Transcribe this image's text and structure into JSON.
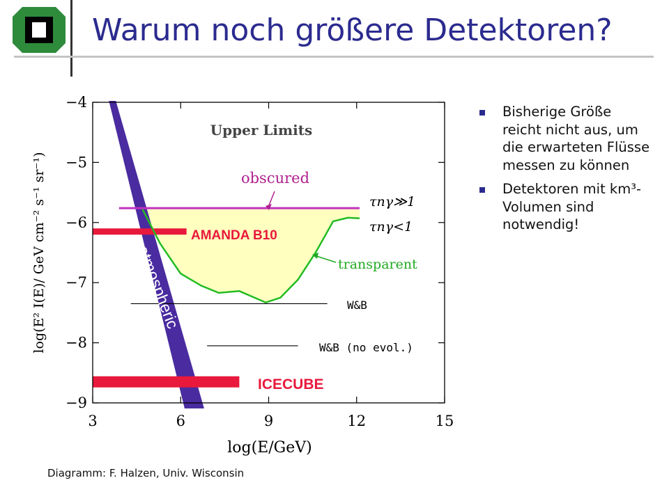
{
  "slide": {
    "title": "Warum noch größere Detektoren?",
    "bullets": [
      "Bisherige Größe reicht nicht aus, um die erwarteten Flüsse messen zu können",
      "Detektoren mit km³-Volumen sind notwendig!"
    ],
    "caption": "Diagramm: F. Halzen, Univ. Wisconsin",
    "colors": {
      "title": "#2b2b8f",
      "bullet": "#2b2b8f",
      "logo": "#2e8b3c"
    }
  },
  "chart_data": {
    "type": "line",
    "title": "Upper Limits",
    "xlabel": "log(E/GeV)",
    "ylabel": "log(E² I(E)/ GeV cm⁻² s⁻¹ sr⁻¹)",
    "xlim": [
      3,
      15
    ],
    "ylim": [
      -9,
      -4
    ],
    "x_ticks": [
      3,
      6,
      9,
      12,
      15
    ],
    "y_ticks": [
      -4,
      -5,
      -6,
      -7,
      -8,
      -9
    ],
    "x_tick_labels": [
      "3",
      "6",
      "9",
      "12",
      "15"
    ],
    "y_tick_labels": [
      "−4",
      "−5",
      "−6",
      "−7",
      "−8",
      "−9"
    ],
    "series": [
      {
        "name": "obscured",
        "color": "#c030c0",
        "x": [
          3.9,
          12.1
        ],
        "y": [
          -5.76,
          -5.76
        ],
        "annotation": "τnγ≫1"
      },
      {
        "name": "transparent",
        "color": "#22bb22",
        "x": [
          4.7,
          5.3,
          6.0,
          6.7,
          7.3,
          8.0,
          8.9,
          9.4,
          10.0,
          10.6,
          11.2,
          11.7,
          12.1
        ],
        "y": [
          -5.78,
          -6.35,
          -6.85,
          -7.05,
          -7.17,
          -7.14,
          -7.33,
          -7.25,
          -6.95,
          -6.5,
          -5.98,
          -5.92,
          -5.93
        ],
        "annotation": "τnγ<1"
      },
      {
        "name": "W&B",
        "color": "#000000",
        "x": [
          4.3,
          11.0
        ],
        "y": [
          -7.35,
          -7.35
        ]
      },
      {
        "name": "W&B (no evol.)",
        "color": "#000000",
        "x": [
          6.9,
          10.0
        ],
        "y": [
          -8.05,
          -8.05
        ]
      }
    ],
    "bands": [
      {
        "name": "AMANDA B10",
        "color": "#e8193c",
        "x": [
          3.0,
          6.2
        ],
        "y": -6.15
      },
      {
        "name": "ICECUBE",
        "color": "#e8193c",
        "x": [
          3.0,
          8.0
        ],
        "y": -8.65
      }
    ],
    "atmospheric_band": {
      "name": "atmospheric",
      "color": "#4a2ba0",
      "upper_left_x_at_top": 3.6,
      "lower_right_x_at_bottom": 6.8
    },
    "fill_color": "#ffffc0",
    "labels": {
      "amanda": "AMANDA B10",
      "icecube": "ICECUBE",
      "atmospheric": "atmospheric",
      "obscured": "obscured",
      "transparent": "transparent",
      "tau_high": "τnγ≫1",
      "tau_low": "τnγ<1",
      "wb": "W&B",
      "wb_noevol": "W&B (no evol.)"
    }
  }
}
